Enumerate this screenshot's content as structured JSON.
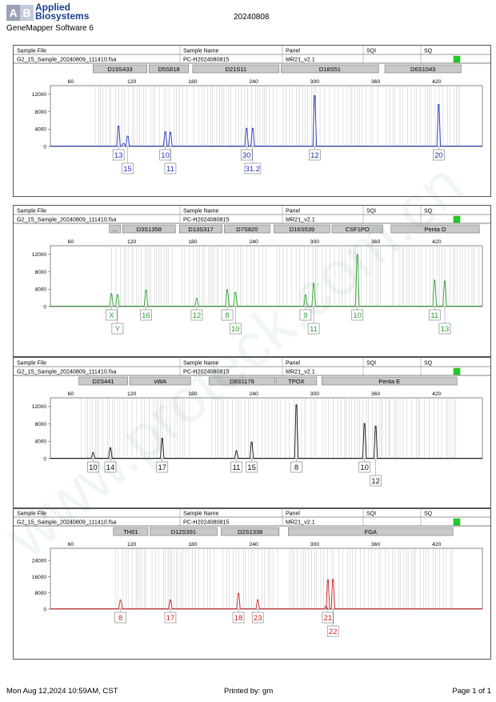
{
  "header": {
    "brand_line1": "Applied",
    "brand_line2": "Biosystems",
    "software": "GeneMapper Software 6",
    "date": "20240808"
  },
  "columns": {
    "sample_file": "Sample File",
    "sample_name": "Sample Name",
    "panel": "Panel",
    "sqi": "SQI",
    "sq": "SQ"
  },
  "x_ticks": [
    60,
    120,
    180,
    240,
    300,
    360,
    420
  ],
  "panels": [
    {
      "file": "G2_15_Sample_20240809_111410.fsa",
      "name": "PC-H2024080815",
      "panel": "MR21_v2.1",
      "color": "#1f2fbf",
      "y_ticks": [
        0,
        4000,
        8000,
        12000
      ],
      "y_max": 14000,
      "markers": [
        {
          "label": "D19S433",
          "from": 82,
          "to": 135
        },
        {
          "label": "D5S818",
          "from": 137,
          "to": 176
        },
        {
          "label": "D21S11",
          "from": 180,
          "to": 265
        },
        {
          "label": "D18S51",
          "from": 267,
          "to": 363
        },
        {
          "label": "D6S1043",
          "from": 369,
          "to": 444
        }
      ],
      "peaks": [
        {
          "x": 107,
          "h": 4700
        },
        {
          "x": 112,
          "h": 700
        },
        {
          "x": 116,
          "h": 2400
        },
        {
          "x": 153,
          "h": 3400
        },
        {
          "x": 158,
          "h": 3300
        },
        {
          "x": 233,
          "h": 4200
        },
        {
          "x": 239,
          "h": 4200
        },
        {
          "x": 300,
          "h": 11700
        },
        {
          "x": 422,
          "h": 9700
        }
      ],
      "alleles": [
        {
          "label": "13",
          "x": 107,
          "row": 0
        },
        {
          "label": "15",
          "x": 116,
          "row": 1
        },
        {
          "label": "10",
          "x": 153,
          "row": 0
        },
        {
          "label": "11",
          "x": 158,
          "row": 1
        },
        {
          "label": "30",
          "x": 233,
          "row": 0
        },
        {
          "label": "31.2",
          "x": 239,
          "row": 1
        },
        {
          "label": "12",
          "x": 300,
          "row": 0
        },
        {
          "label": "20",
          "x": 422,
          "row": 0
        }
      ]
    },
    {
      "file": "G2_15_Sample_20240809_111410.fsa",
      "name": "PC-H2024080815",
      "panel": "MR21_v2.1",
      "color": "#2ea02e",
      "y_ticks": [
        0,
        4000,
        8000,
        12000
      ],
      "y_max": 14000,
      "markers": [
        {
          "label": "...",
          "from": 98,
          "to": 109
        },
        {
          "label": "D3S1358",
          "from": 111,
          "to": 163
        },
        {
          "label": "D13S317",
          "from": 167,
          "to": 209
        },
        {
          "label": "D7S820",
          "from": 211,
          "to": 256
        },
        {
          "label": "D16S539",
          "from": 260,
          "to": 315
        },
        {
          "label": "CSF1PO",
          "from": 317,
          "to": 367
        },
        {
          "label": "Penta D",
          "from": 375,
          "to": 462
        }
      ],
      "peaks": [
        {
          "x": 100,
          "h": 3000
        },
        {
          "x": 106,
          "h": 2800
        },
        {
          "x": 134,
          "h": 3800
        },
        {
          "x": 184,
          "h": 1900
        },
        {
          "x": 214,
          "h": 3900
        },
        {
          "x": 222,
          "h": 3300
        },
        {
          "x": 291,
          "h": 2700
        },
        {
          "x": 299,
          "h": 5300
        },
        {
          "x": 342,
          "h": 12000
        },
        {
          "x": 418,
          "h": 6100
        },
        {
          "x": 428,
          "h": 5900
        }
      ],
      "alleles": [
        {
          "label": "X",
          "x": 100,
          "row": 0
        },
        {
          "label": "Y",
          "x": 106,
          "row": 1
        },
        {
          "label": "16",
          "x": 134,
          "row": 0
        },
        {
          "label": "12",
          "x": 184,
          "row": 0
        },
        {
          "label": "8",
          "x": 214,
          "row": 0
        },
        {
          "label": "10",
          "x": 222,
          "row": 1
        },
        {
          "label": "9",
          "x": 291,
          "row": 0
        },
        {
          "label": "11",
          "x": 299,
          "row": 1
        },
        {
          "label": "10",
          "x": 342,
          "row": 0
        },
        {
          "label": "11",
          "x": 418,
          "row": 0
        },
        {
          "label": "13",
          "x": 428,
          "row": 1
        }
      ]
    },
    {
      "file": "G2_15_Sample_20240809_111410.fsa",
      "name": "PC-H2024080815",
      "panel": "MR21_v2.1",
      "color": "#111111",
      "y_ticks": [
        0,
        4000,
        8000,
        12000
      ],
      "y_max": 14000,
      "markers": [
        {
          "label": "D2S441",
          "from": 68,
          "to": 116
        },
        {
          "label": "vWA",
          "from": 118,
          "to": 178
        },
        {
          "label": "D8S1179",
          "from": 196,
          "to": 261
        },
        {
          "label": "TPOX",
          "from": 262,
          "to": 302
        },
        {
          "label": "Penta E",
          "from": 307,
          "to": 440
        }
      ],
      "peaks": [
        {
          "x": 82,
          "h": 1400
        },
        {
          "x": 99,
          "h": 2500
        },
        {
          "x": 150,
          "h": 4700
        },
        {
          "x": 223,
          "h": 1800
        },
        {
          "x": 238,
          "h": 3800
        },
        {
          "x": 282,
          "h": 12400
        },
        {
          "x": 349,
          "h": 8100
        },
        {
          "x": 360,
          "h": 7500
        }
      ],
      "alleles": [
        {
          "label": "10",
          "x": 82,
          "row": 0
        },
        {
          "label": "14",
          "x": 99,
          "row": 0
        },
        {
          "label": "17",
          "x": 150,
          "row": 0
        },
        {
          "label": "11",
          "x": 223,
          "row": 0
        },
        {
          "label": "15",
          "x": 238,
          "row": 0
        },
        {
          "label": "8",
          "x": 282,
          "row": 0
        },
        {
          "label": "10",
          "x": 349,
          "row": 0
        },
        {
          "label": "12",
          "x": 360,
          "row": 1
        }
      ]
    },
    {
      "file": "G2_15_Sample_20240809_111410.fsa",
      "name": "PC-H2024080815",
      "panel": "MR21_v2.1",
      "color": "#d02020",
      "y_ticks": [
        0,
        8000,
        16000,
        24000
      ],
      "y_max": 30000,
      "markers": [
        {
          "label": "TH01",
          "from": 102,
          "to": 136
        },
        {
          "label": "D12S391",
          "from": 138,
          "to": 204
        },
        {
          "label": "D2S1338",
          "from": 208,
          "to": 265
        },
        {
          "label": "FGA",
          "from": 274,
          "to": 436
        }
      ],
      "peaks": [
        {
          "x": 109,
          "h": 4500
        },
        {
          "x": 158,
          "h": 4500
        },
        {
          "x": 225,
          "h": 7800
        },
        {
          "x": 244,
          "h": 4600
        },
        {
          "x": 311,
          "h": 1500
        },
        {
          "x": 313,
          "h": 14500
        },
        {
          "x": 318,
          "h": 14700
        }
      ],
      "alleles": [
        {
          "label": "8",
          "x": 109,
          "row": 0
        },
        {
          "label": "17",
          "x": 158,
          "row": 0
        },
        {
          "label": "18",
          "x": 225,
          "row": 0
        },
        {
          "label": "23",
          "x": 244,
          "row": 0
        },
        {
          "label": "21",
          "x": 313,
          "row": 0
        },
        {
          "label": "22",
          "x": 318,
          "row": 1
        }
      ]
    }
  ],
  "footer": {
    "timestamp": "Mon Aug 12,2024 10:59AM, CST",
    "printed_by": "Printed by: gm",
    "page": "Page 1 of 1"
  },
  "watermark": "www.proteck.com.cn",
  "status_color": "#22cc22"
}
